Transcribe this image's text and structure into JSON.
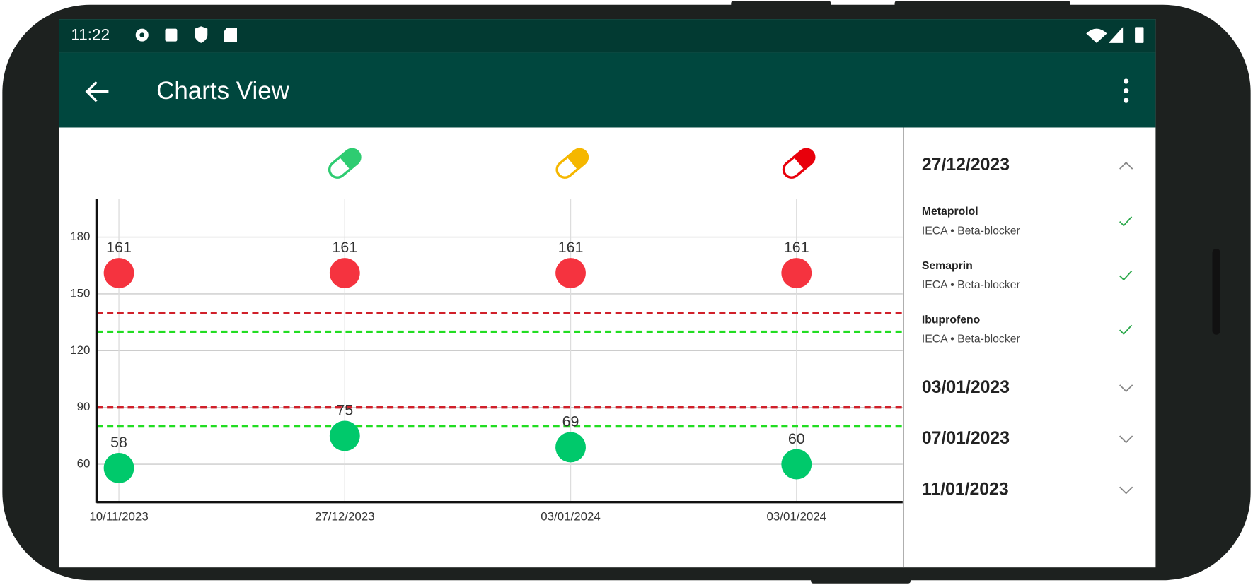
{
  "status_bar": {
    "time": "11:22"
  },
  "app_bar": {
    "title": "Charts View"
  },
  "chart_data": {
    "type": "scatter",
    "categories": [
      "10/11/2023",
      "27/12/2023",
      "03/01/2024",
      "03/01/2024"
    ],
    "series": [
      {
        "color": "#f5333f",
        "values": [
          161,
          161,
          161,
          161
        ]
      },
      {
        "color": "#00c96b",
        "values": [
          58,
          75,
          69,
          60
        ]
      }
    ],
    "ylim": [
      40,
      200
    ],
    "yticks": [
      60,
      90,
      120,
      150,
      180
    ],
    "grid": true,
    "reference_lines": [
      {
        "value": 140,
        "color": "#d0202a"
      },
      {
        "value": 130,
        "color": "#22dd22"
      },
      {
        "value": 90,
        "color": "#d0202a"
      },
      {
        "value": 80,
        "color": "#22dd22"
      }
    ]
  },
  "history": [
    {
      "date": "27/12/2023",
      "expanded": true,
      "items": [
        {
          "name": "Metaprolol",
          "detail": "IECA • Beta-blocker"
        },
        {
          "name": "Semaprin",
          "detail": "IECA • Beta-blocker"
        },
        {
          "name": "Ibuprofeno",
          "detail": "IECA • Beta-blocker"
        }
      ]
    },
    {
      "date": "03/01/2023",
      "expanded": false
    },
    {
      "date": "07/01/2023",
      "expanded": false
    },
    {
      "date": "11/01/2023",
      "expanded": false
    }
  ]
}
